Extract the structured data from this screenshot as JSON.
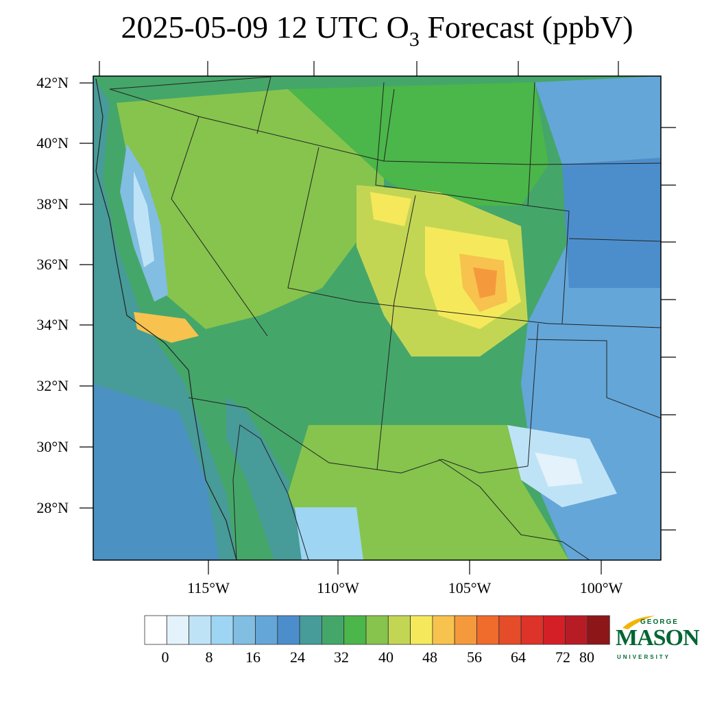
{
  "title": {
    "main": "2025-05-09 12 UTC O",
    "subscript": "3",
    "rest": " Forecast (ppbV)"
  },
  "map": {
    "lat_labels": [
      "42°N",
      "40°N",
      "38°N",
      "36°N",
      "34°N",
      "32°N",
      "30°N",
      "28°N"
    ],
    "lon_labels": [
      "115°W",
      "110°W",
      "105°W",
      "100°W"
    ]
  },
  "colorbar": {
    "labels": [
      "0",
      "8",
      "16",
      "24",
      "32",
      "40",
      "48",
      "56",
      "64",
      "72",
      "80"
    ],
    "colors": [
      "#ffffff",
      "#e3f2fb",
      "#bfe3f6",
      "#9dd5f2",
      "#82bde2",
      "#64a6d8",
      "#4c8ecb",
      "#479b99",
      "#45a66a",
      "#4bb64a",
      "#86c44d",
      "#c3d654",
      "#f5e95b",
      "#f7c24e",
      "#f59a3c",
      "#ef6c2d",
      "#e44c2a",
      "#dd3328",
      "#d41f26",
      "#b71c24",
      "#8d1619"
    ]
  },
  "logo": {
    "line1": "GEORGE",
    "line2": "MASON",
    "line3": "UNIVERSITY"
  }
}
